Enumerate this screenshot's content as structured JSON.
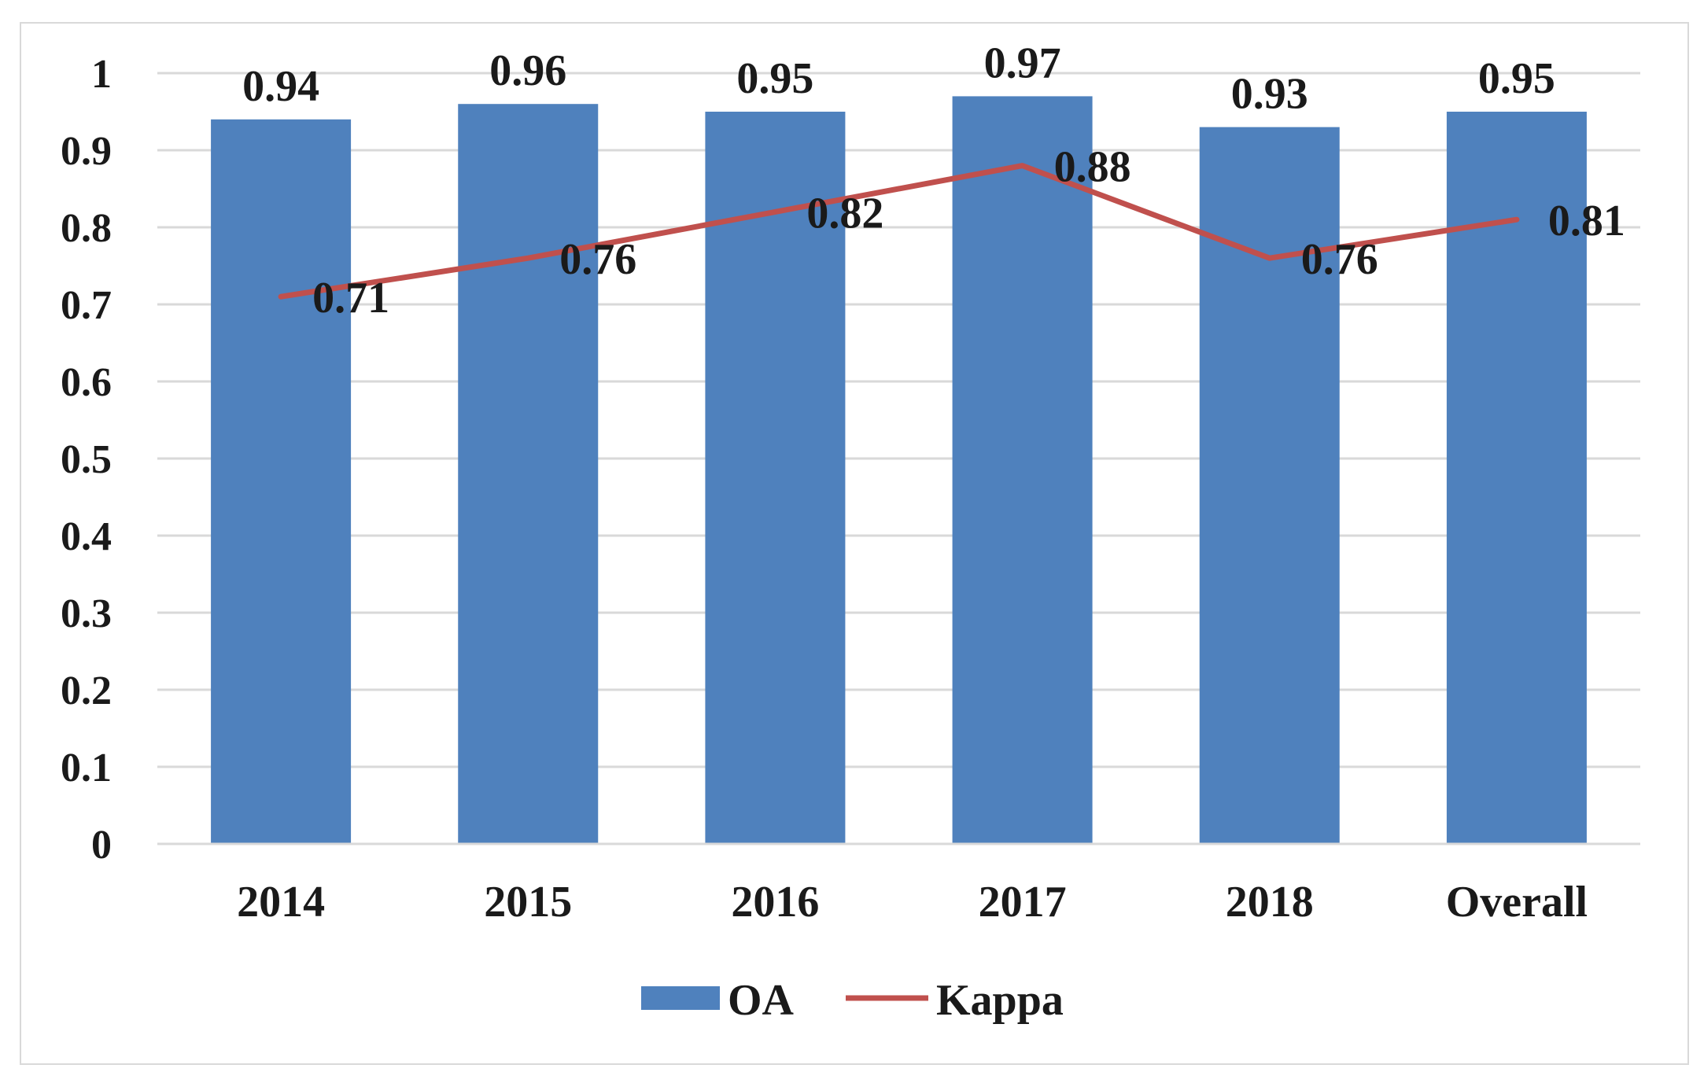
{
  "chart_data": {
    "type": "bar",
    "title": "",
    "xlabel": "",
    "ylabel": "",
    "categories": [
      "2014",
      "2015",
      "2016",
      "2017",
      "2018",
      "Overall"
    ],
    "ylim": [
      0,
      1
    ],
    "yticks": [
      "0",
      "0.1",
      "0.2",
      "0.3",
      "0.4",
      "0.5",
      "0.6",
      "0.7",
      "0.8",
      "0.9",
      "1"
    ],
    "grid": true,
    "legend_position": "bottom",
    "series": [
      {
        "name": "OA",
        "type": "bar",
        "color": "#4f81bd",
        "values": [
          0.94,
          0.96,
          0.95,
          0.97,
          0.93,
          0.95
        ],
        "labels": [
          "0.94",
          "0.96",
          "0.95",
          "0.97",
          "0.93",
          "0.95"
        ]
      },
      {
        "name": "Kappa",
        "type": "line",
        "color": "#c0504d",
        "values": [
          0.71,
          0.76,
          0.82,
          0.88,
          0.76,
          0.81
        ],
        "labels": [
          "0.71",
          "0.76",
          "0.82",
          "0.88",
          "0.76",
          "0.81"
        ]
      }
    ]
  }
}
